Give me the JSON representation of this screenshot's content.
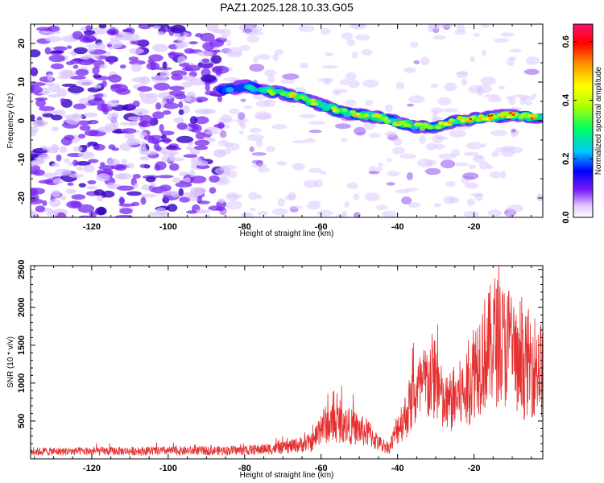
{
  "title": "PAZ1.2025.128.10.33.G05",
  "colors": {
    "snr_line": "#e53030",
    "blob_low": "#dcc8ff",
    "blob_mid": "#7a28f0",
    "blob_high": "#3400c0"
  },
  "chart_data": [
    {
      "type": "heatmap",
      "xlabel": "Height of straight line (km)",
      "ylabel": "Frequency (Hz)",
      "xlim": [
        -136,
        -2
      ],
      "ylim": [
        -25,
        25
      ],
      "xticks": [
        -120,
        -100,
        -80,
        -60,
        -40,
        -20
      ],
      "yticks": [
        -20,
        -10,
        0,
        10,
        20
      ],
      "ridge": {
        "x": [
          -86,
          -80,
          -75,
          -70,
          -65,
          -60,
          -55,
          -50,
          -45,
          -40,
          -35,
          -30,
          -25,
          -20,
          -15,
          -10,
          -5,
          -2
        ],
        "y": [
          8,
          9,
          8,
          7,
          6,
          4,
          2.5,
          1.5,
          1,
          -0.5,
          -1.5,
          -1.5,
          0,
          0.5,
          1,
          1.5,
          1,
          0.5
        ],
        "amplitude": [
          0.2,
          0.25,
          0.35,
          0.45,
          0.5,
          0.4,
          0.45,
          0.5,
          0.45,
          0.5,
          0.45,
          0.5,
          0.55,
          0.6,
          0.62,
          0.6,
          0.55,
          0.5
        ]
      },
      "colorbar": {
        "label": "Normalized spectral amplitude",
        "range": [
          0,
          0.66
        ],
        "ticks": [
          0.0,
          0.2,
          0.4,
          0.6
        ]
      },
      "grid": false
    },
    {
      "type": "line",
      "xlabel": "Height of straight line (km)",
      "ylabel": "SNR (10 * v/v)",
      "xlim": [
        -136,
        -2
      ],
      "ylim": [
        0,
        2550
      ],
      "xticks": [
        -120,
        -100,
        -80,
        -60,
        -40,
        -20
      ],
      "yticks": [
        500,
        1000,
        1500,
        2000,
        2500
      ],
      "envelope": {
        "x": [
          -136,
          -100,
          -80,
          -70,
          -62,
          -60,
          -55,
          -50,
          -47,
          -45,
          -42,
          -40,
          -38,
          -36,
          -33,
          -30,
          -28,
          -25,
          -22,
          -20,
          -18,
          -16,
          -15,
          -12,
          -10,
          -8,
          -6,
          -4,
          -2
        ],
        "y": [
          120,
          130,
          140,
          180,
          280,
          550,
          600,
          480,
          400,
          250,
          180,
          520,
          700,
          1000,
          1200,
          1400,
          850,
          1000,
          1100,
          1500,
          1700,
          1800,
          2000,
          1850,
          1900,
          1300,
          1600,
          1550,
          1450
        ]
      },
      "grid": false
    }
  ]
}
